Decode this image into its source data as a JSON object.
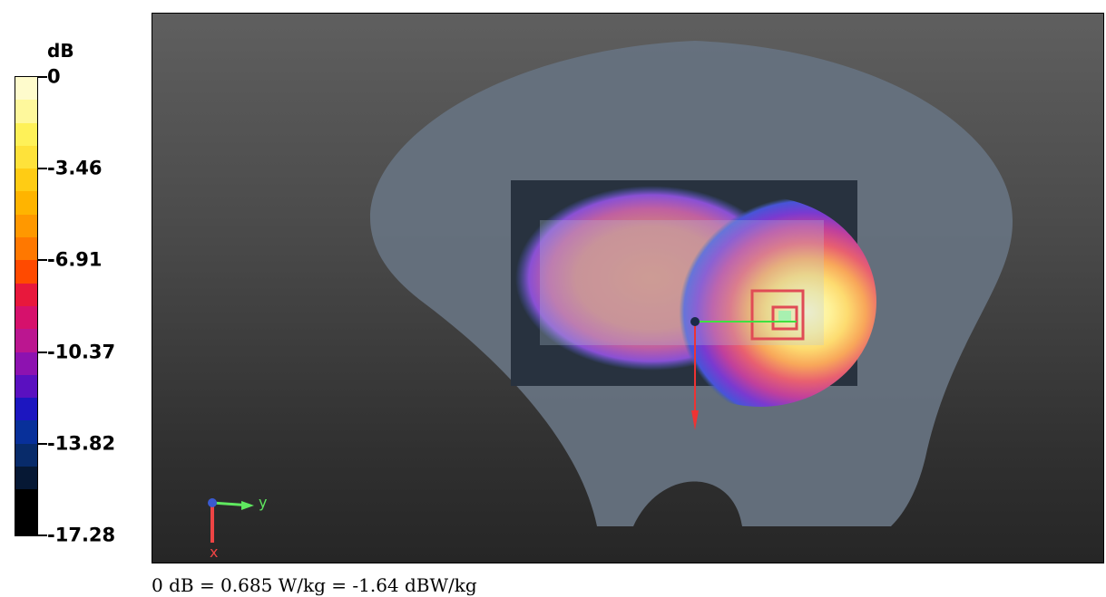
{
  "colorbar": {
    "unit": "dB",
    "ticks": [
      "0",
      "-3.46",
      "-6.91",
      "-10.37",
      "-13.82",
      "-17.28"
    ],
    "bands": [
      "#fefbcc",
      "#fef89c",
      "#fef158",
      "#fee23a",
      "#ffcc14",
      "#ffb400",
      "#ff9800",
      "#ff7800",
      "#ff4a00",
      "#e8183c",
      "#d6116c",
      "#bb1690",
      "#8d12b0",
      "#5a10c0",
      "#1c16c0",
      "#08309a",
      "#082b6a",
      "#061834",
      "#000000",
      "#000000"
    ]
  },
  "view": {
    "axis_y_label": "y",
    "axis_x_label": "x"
  },
  "footer": {
    "text": "0 dB = 0.685 W/kg = -1.64 dBW/kg"
  }
}
